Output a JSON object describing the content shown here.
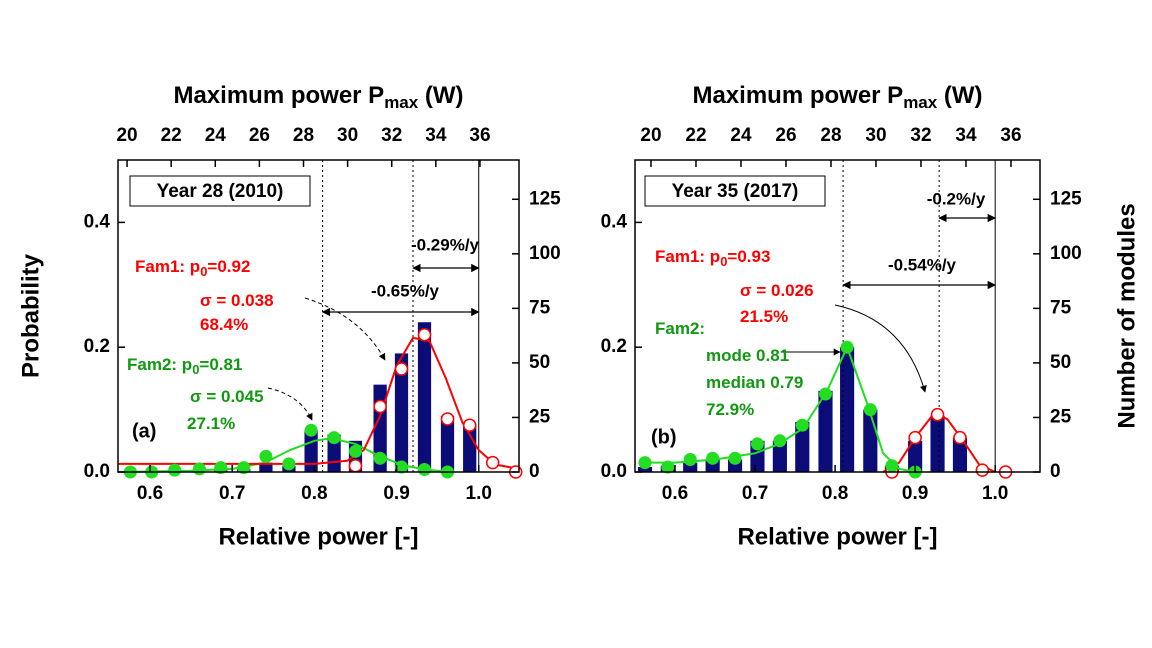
{
  "chart_data": [
    {
      "type": "histogram-fit",
      "panel_label": "(a)",
      "year_label": "Year 28 (2010)",
      "xlabel": "Relative power [-]",
      "ylabel": "Probability",
      "x2label": [
        "Maximum power P",
        "max",
        " (W)"
      ],
      "xlim": [
        0.561,
        1.049
      ],
      "xticks": [
        0.6,
        0.7,
        0.8,
        0.9,
        {
          "value": 1,
          "label": "1.0"
        }
      ],
      "x2lim": [
        19.59,
        37.77
      ],
      "x2ticks": [
        20,
        22,
        24,
        26,
        28,
        30,
        32,
        34,
        36
      ],
      "ylim": [
        0,
        0.5
      ],
      "yticks": [
        {
          "value": 0,
          "label": "0.0"
        },
        0.2,
        0.4
      ],
      "y2lim": [
        0,
        143
      ],
      "y2ticks": [
        0,
        25,
        50,
        75,
        100,
        125
      ],
      "x": [
        0.576,
        0.602,
        0.63,
        0.66,
        0.686,
        0.714,
        0.741,
        0.769,
        0.796,
        0.824,
        0.85,
        0.88,
        0.906,
        0.934,
        0.962,
        0.989,
        1.017,
        1.045
      ],
      "bars": {
        "color": "#0c0c78",
        "values": [
          0,
          0,
          0,
          0,
          0.005,
          0.005,
          0.015,
          0.01,
          0.067,
          0.06,
          0.05,
          0.14,
          0.19,
          0.24,
          0.09,
          0.077,
          0,
          0
        ]
      },
      "fam1_points": {
        "color": "#ff0000",
        "values": [
          null,
          null,
          null,
          null,
          null,
          null,
          null,
          null,
          null,
          null,
          0.01,
          0.105,
          0.165,
          0.22,
          0.085,
          0.075,
          0.015,
          0
        ]
      },
      "fam2_points": {
        "color": "#22dd22",
        "values": [
          0,
          0,
          0.003,
          0.005,
          0.007,
          0.007,
          0.025,
          0.013,
          0.067,
          0.055,
          0.033,
          0.022,
          0.008,
          0.004,
          0,
          null,
          null,
          null
        ]
      },
      "fam1_fit": {
        "color": "#ff0000",
        "x": [
          0.561,
          0.6,
          0.7,
          0.8,
          0.84,
          0.86,
          0.88,
          0.9,
          0.92,
          0.94,
          0.96,
          0.98,
          1.0,
          1.02,
          1.049
        ],
        "values": [
          0.013,
          0.013,
          0.013,
          0.013,
          0.018,
          0.035,
          0.09,
          0.17,
          0.215,
          0.21,
          0.15,
          0.08,
          0.035,
          0.012,
          0.005
        ]
      },
      "fam2_fit": {
        "color": "#22dd22",
        "x": [
          0.561,
          0.65,
          0.7,
          0.74,
          0.77,
          0.8,
          0.82,
          0.85,
          0.88,
          0.91,
          0.94,
          0.97
        ],
        "values": [
          0,
          0.002,
          0.005,
          0.015,
          0.035,
          0.05,
          0.054,
          0.045,
          0.025,
          0.01,
          0.003,
          0
        ]
      },
      "vlines": [
        {
          "value": 0.81,
          "style": "dotted"
        },
        {
          "value": 0.92,
          "style": "dotted"
        },
        {
          "value": 1,
          "style": "solid"
        }
      ],
      "arrows": [
        {
          "label": "-0.29%/y",
          "from": 0.92,
          "to": 1
        },
        {
          "label": "-0.65%/y",
          "from": 0.81,
          "to": 1
        }
      ],
      "annotations": [
        {
          "color": "#ff0000",
          "lines": [
            {
              "text": "Fam1: p",
              "sub": "0",
              "after": "=0.92"
            },
            {
              "text": "σ = 0.038"
            },
            {
              "text": "68.4%"
            }
          ]
        },
        {
          "color": "#119911",
          "lines": [
            {
              "text": "Fam2: p",
              "sub": "0",
              "after": "=0.81"
            },
            {
              "text": "σ = 0.045"
            },
            {
              "text": "27.1%"
            }
          ]
        }
      ]
    },
    {
      "type": "histogram-fit",
      "panel_label": "(b)",
      "year_label": "Year 35 (2017)",
      "xlabel": "Relative power [-]",
      "y2label": "Number of modules",
      "x2label": [
        "Maximum power P",
        "max",
        " (W)"
      ],
      "xlim": [
        0.55,
        1.056
      ],
      "xticks": [
        0.6,
        0.7,
        0.8,
        0.9,
        {
          "value": 1,
          "label": "1.0"
        }
      ],
      "x2lim": [
        19.29,
        37.29
      ],
      "x2ticks": [
        20,
        22,
        24,
        26,
        28,
        30,
        32,
        34,
        36
      ],
      "ylim": [
        0,
        0.5
      ],
      "yticks": [
        {
          "value": 0,
          "label": "0.0"
        },
        0.2,
        0.4
      ],
      "y2lim": [
        0,
        143
      ],
      "y2ticks": [
        0,
        25,
        50,
        75,
        100,
        125
      ],
      "x": [
        0.5625,
        0.591,
        0.619,
        0.647,
        0.675,
        0.703,
        0.731,
        0.759,
        0.788,
        0.815,
        0.844,
        0.871,
        0.9,
        0.928,
        0.956,
        0.984,
        1.013
      ],
      "bars": {
        "color": "#0c0c78",
        "values": [
          0.008,
          0.01,
          0.015,
          0.02,
          0.02,
          0.05,
          0.05,
          0.08,
          0.13,
          0.2,
          0.1,
          0.01,
          0.05,
          0.09,
          0.055,
          0,
          0
        ]
      },
      "fam1_points": {
        "color": "#ff0000",
        "values": [
          null,
          null,
          null,
          null,
          null,
          null,
          null,
          null,
          null,
          null,
          null,
          0,
          0.055,
          0.092,
          0.055,
          0.003,
          0
        ]
      },
      "fam2_points": {
        "color": "#22dd22",
        "values": [
          0.015,
          0.008,
          0.02,
          0.022,
          0.022,
          0.045,
          0.05,
          0.075,
          0.125,
          0.2,
          0.1,
          0.01,
          0,
          null,
          null,
          null,
          null
        ]
      },
      "fam1_fit": {
        "color": "#ff0000",
        "x": [
          0.86,
          0.88,
          0.9,
          0.92,
          0.93,
          0.94,
          0.96,
          0.98,
          1.0
        ],
        "values": [
          0,
          0.015,
          0.055,
          0.088,
          0.09,
          0.085,
          0.05,
          0.012,
          0
        ]
      },
      "fam2_fit": {
        "color": "#22dd22",
        "x": [
          0.56,
          0.6,
          0.65,
          0.7,
          0.73,
          0.76,
          0.79,
          0.815,
          0.84,
          0.86,
          0.88,
          0.9
        ],
        "values": [
          0.015,
          0.015,
          0.02,
          0.03,
          0.045,
          0.07,
          0.13,
          0.2,
          0.11,
          0.03,
          0.005,
          0
        ]
      },
      "vlines": [
        {
          "value": 0.81,
          "style": "dotted"
        },
        {
          "value": 0.93,
          "style": "dotted"
        },
        {
          "value": 1,
          "style": "solid"
        }
      ],
      "arrows": [
        {
          "label": "-0.2%/y",
          "from": 0.93,
          "to": 1
        },
        {
          "label": "-0.54%/y",
          "from": 0.81,
          "to": 1
        }
      ],
      "annotations": [
        {
          "color": "#ff0000",
          "lines": [
            {
              "text": "Fam1: p",
              "sub": "0",
              "after": "=0.93"
            },
            {
              "text": "σ = 0.026"
            },
            {
              "text": "21.5%"
            }
          ]
        },
        {
          "color": "#119911",
          "lines": [
            {
              "text": "Fam2:"
            },
            {
              "text": "mode 0.81"
            },
            {
              "text": "median 0.79"
            },
            {
              "text": "72.9%"
            }
          ]
        }
      ]
    }
  ]
}
